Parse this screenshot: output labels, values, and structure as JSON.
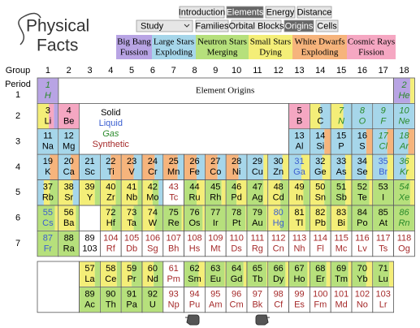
{
  "logo": {
    "line1": "Physical",
    "line2": "Facts"
  },
  "nav": [
    "Introduction",
    "Elements",
    "Energy",
    "Distance"
  ],
  "subnav": {
    "select": "Study",
    "buttons": [
      "Families",
      "Orbital Blocks",
      "Origins",
      "Cells"
    ]
  },
  "origins": [
    {
      "name": "Big Bang",
      "line2": "Fussion",
      "color": "#b8a4e4"
    },
    {
      "name": "Large Stars",
      "line2": "Exploding",
      "color": "#a6d6ea"
    },
    {
      "name": "Neutron Stars",
      "line2": "Merging",
      "color": "#b6e07c"
    },
    {
      "name": "Small Stars",
      "line2": "Dying",
      "color": "#f4ee78"
    },
    {
      "name": "White Dwarfs",
      "line2": "Exploding",
      "color": "#f6b47c"
    },
    {
      "name": "Cosmic Rays",
      "line2": "Fission",
      "color": "#f5a7c2"
    }
  ],
  "table": {
    "group_label": "Group",
    "groups": [
      1,
      2,
      3,
      4,
      5,
      6,
      7,
      8,
      9,
      10,
      11,
      12,
      13,
      14,
      15,
      16,
      17,
      18
    ],
    "period_label": "Period",
    "periods": [
      1,
      2,
      3,
      4,
      5,
      6,
      7
    ],
    "title": "Element Origins",
    "states": [
      {
        "label": "Solid",
        "color": "#000000"
      },
      {
        "label": "Liquid",
        "color": "#3a5ed0"
      },
      {
        "label": "Gas",
        "color": "#2a8a2a"
      },
      {
        "label": "Synthetic",
        "color": "#a52a2a"
      }
    ],
    "range_label": [
      "89",
      "103"
    ],
    "elements": [
      [
        1,
        "H",
        2,
        [
          [
            0,
            100
          ]
        ]
      ],
      [
        2,
        "He",
        2,
        [
          [
            0,
            80
          ],
          [
            3,
            20
          ]
        ]
      ],
      [
        3,
        "Li",
        0,
        [
          [
            3,
            55
          ],
          [
            5,
            25
          ],
          [
            0,
            20
          ]
        ]
      ],
      [
        4,
        "Be",
        0,
        [
          [
            5,
            100
          ]
        ]
      ],
      [
        5,
        "B",
        0,
        [
          [
            5,
            100
          ]
        ]
      ],
      [
        6,
        "C",
        0,
        [
          [
            3,
            50
          ],
          [
            1,
            50
          ]
        ]
      ],
      [
        7,
        "N",
        2,
        [
          [
            3,
            60
          ],
          [
            1,
            40
          ]
        ]
      ],
      [
        8,
        "O",
        2,
        [
          [
            1,
            100
          ]
        ]
      ],
      [
        9,
        "F",
        2,
        [
          [
            1,
            100
          ]
        ]
      ],
      [
        10,
        "Ne",
        2,
        [
          [
            1,
            100
          ]
        ]
      ],
      [
        11,
        "Na",
        0,
        [
          [
            1,
            100
          ]
        ]
      ],
      [
        12,
        "Mg",
        0,
        [
          [
            1,
            100
          ]
        ]
      ],
      [
        13,
        "Al",
        0,
        [
          [
            1,
            100
          ]
        ]
      ],
      [
        14,
        "Si",
        0,
        [
          [
            1,
            70
          ],
          [
            4,
            30
          ]
        ]
      ],
      [
        15,
        "P",
        0,
        [
          [
            1,
            100
          ]
        ]
      ],
      [
        16,
        "S",
        0,
        [
          [
            1,
            70
          ],
          [
            4,
            30
          ]
        ]
      ],
      [
        17,
        "Cl",
        2,
        [
          [
            1,
            70
          ],
          [
            4,
            30
          ]
        ]
      ],
      [
        18,
        "Ar",
        2,
        [
          [
            1,
            70
          ],
          [
            4,
            30
          ]
        ]
      ],
      [
        19,
        "K",
        0,
        [
          [
            1,
            60
          ],
          [
            4,
            40
          ]
        ]
      ],
      [
        20,
        "Ca",
        0,
        [
          [
            1,
            60
          ],
          [
            4,
            40
          ]
        ]
      ],
      [
        21,
        "Sc",
        0,
        [
          [
            1,
            100
          ]
        ]
      ],
      [
        22,
        "Ti",
        0,
        [
          [
            1,
            50
          ],
          [
            4,
            50
          ]
        ]
      ],
      [
        23,
        "V",
        0,
        [
          [
            4,
            60
          ],
          [
            1,
            40
          ]
        ]
      ],
      [
        24,
        "Cr",
        0,
        [
          [
            4,
            60
          ],
          [
            1,
            40
          ]
        ]
      ],
      [
        25,
        "Mn",
        0,
        [
          [
            4,
            70
          ],
          [
            1,
            30
          ]
        ]
      ],
      [
        26,
        "Fe",
        0,
        [
          [
            4,
            60
          ],
          [
            1,
            40
          ]
        ]
      ],
      [
        27,
        "Co",
        0,
        [
          [
            4,
            60
          ],
          [
            1,
            40
          ]
        ]
      ],
      [
        28,
        "Ni",
        0,
        [
          [
            4,
            60
          ],
          [
            1,
            40
          ]
        ]
      ],
      [
        29,
        "Cu",
        0,
        [
          [
            1,
            80
          ],
          [
            3,
            20
          ]
        ]
      ],
      [
        30,
        "Zn",
        0,
        [
          [
            1,
            70
          ],
          [
            3,
            30
          ]
        ]
      ],
      [
        31,
        "Ga",
        1,
        [
          [
            1,
            60
          ],
          [
            3,
            40
          ]
        ]
      ],
      [
        32,
        "Ge",
        0,
        [
          [
            1,
            60
          ],
          [
            3,
            40
          ]
        ]
      ],
      [
        33,
        "As",
        0,
        [
          [
            1,
            70
          ],
          [
            3,
            30
          ]
        ]
      ],
      [
        34,
        "Se",
        0,
        [
          [
            1,
            70
          ],
          [
            3,
            30
          ]
        ]
      ],
      [
        35,
        "Br",
        1,
        [
          [
            1,
            70
          ],
          [
            3,
            30
          ]
        ]
      ],
      [
        36,
        "Kr",
        2,
        [
          [
            1,
            60
          ],
          [
            3,
            40
          ]
        ]
      ],
      [
        37,
        "Rb",
        0,
        [
          [
            1,
            30
          ],
          [
            3,
            30
          ],
          [
            2,
            40
          ]
        ]
      ],
      [
        38,
        "Sr",
        0,
        [
          [
            3,
            70
          ],
          [
            1,
            30
          ]
        ]
      ],
      [
        39,
        "Y",
        0,
        [
          [
            3,
            75
          ],
          [
            2,
            25
          ]
        ]
      ],
      [
        40,
        "Zr",
        0,
        [
          [
            3,
            75
          ],
          [
            2,
            25
          ]
        ]
      ],
      [
        41,
        "Nb",
        0,
        [
          [
            3,
            80
          ],
          [
            2,
            20
          ]
        ]
      ],
      [
        42,
        "Mo",
        0,
        [
          [
            3,
            50
          ],
          [
            2,
            30
          ],
          [
            1,
            20
          ]
        ]
      ],
      [
        43,
        "Tc",
        3,
        []
      ],
      [
        44,
        "Ru",
        0,
        [
          [
            2,
            60
          ],
          [
            3,
            40
          ]
        ]
      ],
      [
        45,
        "Rh",
        0,
        [
          [
            2,
            80
          ],
          [
            3,
            20
          ]
        ]
      ],
      [
        46,
        "Pd",
        0,
        [
          [
            2,
            50
          ],
          [
            3,
            50
          ]
        ]
      ],
      [
        47,
        "Ag",
        0,
        [
          [
            2,
            80
          ],
          [
            3,
            20
          ]
        ]
      ],
      [
        48,
        "Cd",
        0,
        [
          [
            3,
            60
          ],
          [
            2,
            40
          ]
        ]
      ],
      [
        49,
        "In",
        0,
        [
          [
            3,
            70
          ],
          [
            2,
            30
          ]
        ]
      ],
      [
        50,
        "Sn",
        0,
        [
          [
            3,
            70
          ],
          [
            2,
            30
          ]
        ]
      ],
      [
        51,
        "Sb",
        0,
        [
          [
            2,
            70
          ],
          [
            3,
            30
          ]
        ]
      ],
      [
        52,
        "Te",
        0,
        [
          [
            2,
            85
          ],
          [
            3,
            15
          ]
        ]
      ],
      [
        53,
        "I",
        0,
        [
          [
            2,
            100
          ]
        ]
      ],
      [
        54,
        "Xe",
        2,
        [
          [
            2,
            80
          ],
          [
            3,
            20
          ]
        ]
      ],
      [
        55,
        "Cs",
        1,
        [
          [
            2,
            85
          ],
          [
            3,
            15
          ]
        ]
      ],
      [
        56,
        "Ba",
        0,
        [
          [
            3,
            85
          ],
          [
            2,
            15
          ]
        ]
      ],
      [
        57,
        "La",
        0,
        [
          [
            3,
            75
          ],
          [
            2,
            25
          ]
        ]
      ],
      [
        58,
        "Ce",
        0,
        [
          [
            3,
            80
          ],
          [
            2,
            20
          ]
        ]
      ],
      [
        59,
        "Pr",
        0,
        [
          [
            3,
            50
          ],
          [
            2,
            50
          ]
        ]
      ],
      [
        60,
        "Nd",
        0,
        [
          [
            3,
            55
          ],
          [
            2,
            45
          ]
        ]
      ],
      [
        61,
        "Pm",
        3,
        []
      ],
      [
        62,
        "Sm",
        0,
        [
          [
            2,
            70
          ],
          [
            3,
            30
          ]
        ]
      ],
      [
        63,
        "Eu",
        0,
        [
          [
            2,
            95
          ],
          [
            3,
            5
          ]
        ]
      ],
      [
        64,
        "Gd",
        0,
        [
          [
            2,
            85
          ],
          [
            3,
            15
          ]
        ]
      ],
      [
        65,
        "Tb",
        0,
        [
          [
            2,
            95
          ],
          [
            3,
            5
          ]
        ]
      ],
      [
        66,
        "Dy",
        0,
        [
          [
            2,
            85
          ],
          [
            3,
            15
          ]
        ]
      ],
      [
        67,
        "Ho",
        0,
        [
          [
            2,
            90
          ],
          [
            3,
            10
          ]
        ]
      ],
      [
        68,
        "Er",
        0,
        [
          [
            2,
            80
          ],
          [
            3,
            20
          ]
        ]
      ],
      [
        69,
        "Tm",
        0,
        [
          [
            2,
            85
          ],
          [
            3,
            15
          ]
        ]
      ],
      [
        70,
        "Yb",
        0,
        [
          [
            2,
            70
          ],
          [
            3,
            30
          ]
        ]
      ],
      [
        71,
        "Lu",
        0,
        [
          [
            2,
            80
          ],
          [
            3,
            20
          ]
        ]
      ],
      [
        72,
        "Hf",
        0,
        [
          [
            3,
            55
          ],
          [
            2,
            45
          ]
        ]
      ],
      [
        73,
        "Ta",
        0,
        [
          [
            3,
            60
          ],
          [
            2,
            40
          ]
        ]
      ],
      [
        74,
        "W",
        0,
        [
          [
            3,
            60
          ],
          [
            2,
            40
          ]
        ]
      ],
      [
        75,
        "Re",
        0,
        [
          [
            2,
            90
          ],
          [
            3,
            10
          ]
        ]
      ],
      [
        76,
        "Os",
        0,
        [
          [
            2,
            90
          ],
          [
            3,
            10
          ]
        ]
      ],
      [
        77,
        "Ir",
        0,
        [
          [
            2,
            100
          ]
        ]
      ],
      [
        78,
        "Pt",
        0,
        [
          [
            2,
            95
          ],
          [
            3,
            5
          ]
        ]
      ],
      [
        79,
        "Au",
        0,
        [
          [
            2,
            95
          ],
          [
            3,
            5
          ]
        ]
      ],
      [
        80,
        "Hg",
        1,
        [
          [
            3,
            60
          ],
          [
            2,
            40
          ]
        ]
      ],
      [
        81,
        "Tl",
        0,
        [
          [
            3,
            80
          ],
          [
            2,
            20
          ]
        ]
      ],
      [
        82,
        "Pb",
        0,
        [
          [
            3,
            80
          ],
          [
            2,
            20
          ]
        ]
      ],
      [
        83,
        "Bi",
        0,
        [
          [
            3,
            80
          ],
          [
            2,
            20
          ]
        ]
      ],
      [
        84,
        "Po",
        0,
        [
          [
            2,
            100
          ]
        ]
      ],
      [
        85,
        "At",
        0,
        [
          [
            2,
            100
          ]
        ]
      ],
      [
        86,
        "Rn",
        2,
        [
          [
            2,
            100
          ]
        ]
      ],
      [
        87,
        "Fr",
        1,
        [
          [
            2,
            100
          ]
        ]
      ],
      [
        88,
        "Ra",
        0,
        [
          [
            2,
            100
          ]
        ]
      ],
      [
        89,
        "Ac",
        0,
        [
          [
            2,
            100
          ]
        ]
      ],
      [
        90,
        "Th",
        0,
        [
          [
            2,
            100
          ]
        ]
      ],
      [
        91,
        "Pa",
        0,
        [
          [
            2,
            100
          ]
        ]
      ],
      [
        92,
        "U",
        0,
        [
          [
            2,
            100
          ]
        ]
      ],
      [
        93,
        "Np",
        3,
        []
      ],
      [
        94,
        "Pu",
        3,
        []
      ],
      [
        95,
        "Am",
        3,
        []
      ],
      [
        96,
        "Cm",
        3,
        []
      ],
      [
        97,
        "Bk",
        3,
        []
      ],
      [
        98,
        "Cf",
        3,
        []
      ],
      [
        99,
        "Es",
        3,
        []
      ],
      [
        100,
        "Fm",
        3,
        []
      ],
      [
        101,
        "Md",
        3,
        []
      ],
      [
        102,
        "No",
        3,
        []
      ],
      [
        103,
        "Lr",
        3,
        []
      ],
      [
        104,
        "Rf",
        3,
        []
      ],
      [
        105,
        "Db",
        3,
        []
      ],
      [
        106,
        "Sg",
        3,
        []
      ],
      [
        107,
        "Bh",
        3,
        []
      ],
      [
        108,
        "Hs",
        3,
        []
      ],
      [
        109,
        "Mt",
        3,
        []
      ],
      [
        110,
        "Ds",
        3,
        []
      ],
      [
        111,
        "Rg",
        3,
        []
      ],
      [
        112,
        "Cn",
        3,
        []
      ],
      [
        113,
        "Nh",
        3,
        []
      ],
      [
        114,
        "Fl",
        3,
        []
      ],
      [
        115,
        "Mc",
        3,
        []
      ],
      [
        116,
        "Lv",
        3,
        []
      ],
      [
        117,
        "Ts",
        3,
        []
      ],
      [
        118,
        "Og",
        3,
        []
      ]
    ]
  }
}
